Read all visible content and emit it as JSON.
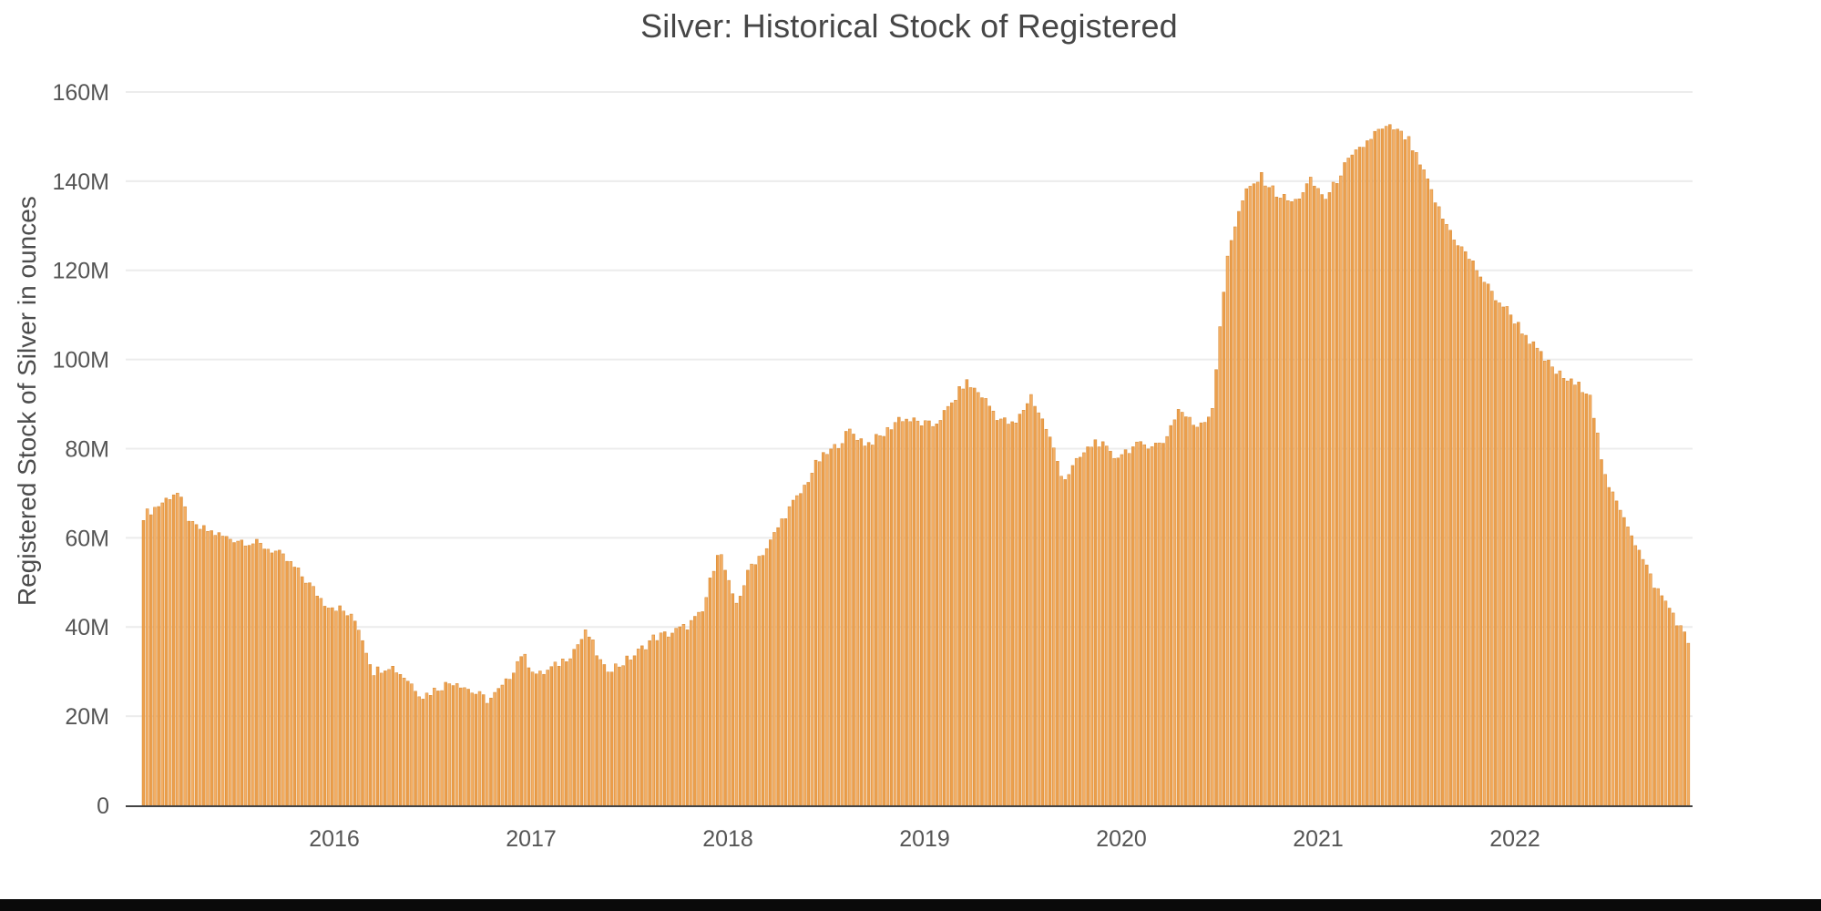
{
  "app": {
    "background": "#ffffff",
    "footer_bar_color": "#0a0a0a",
    "text_color": "#4c4c4c"
  },
  "chart_data": {
    "type": "bar",
    "title": "Silver: Historical Stock of Registered",
    "xlabel": "",
    "ylabel": "Registered Stock of Silver in ounces",
    "x_tick_labels": [
      "2016",
      "2017",
      "2018",
      "2019",
      "2020",
      "2021",
      "2022"
    ],
    "y_tick_labels": [
      "0",
      "20M",
      "40M",
      "60M",
      "80M",
      "100M",
      "120M",
      "140M",
      "160M"
    ],
    "y_tick_values_M": [
      0,
      20,
      40,
      60,
      80,
      100,
      120,
      140,
      160
    ],
    "ylim_M": [
      0,
      160
    ],
    "unit": "ounces (millions)",
    "grid": "horizontal",
    "legend": "none",
    "bar_color": "#ec9f4c",
    "bar_color_alt": "#f3ae64",
    "bar_edge_color": "#d68934",
    "gridline_color": "#ececec",
    "axis_line_color": "#444444",
    "x_range": [
      "2015-01",
      "2022-11"
    ],
    "sampling_note": "dense daily bars; series captured as monthly estimates in million oz",
    "series": [
      {
        "name": "Registered Stock of Silver",
        "monthly_values_M": [
          65,
          67.5,
          70.5,
          62.5,
          61.5,
          60,
          59.5,
          58.5,
          57,
          54,
          50,
          45.5,
          44,
          41,
          30,
          31.5,
          28.5,
          24.5,
          26.5,
          28,
          25.5,
          23.5,
          27,
          34,
          29,
          31,
          34,
          39,
          30.5,
          31.5,
          34,
          37.5,
          38.5,
          40,
          43,
          58,
          44.5,
          54,
          58,
          65,
          70,
          77,
          80,
          84,
          81,
          83,
          87,
          86,
          85,
          89,
          95,
          92,
          87,
          85,
          92,
          84,
          73,
          78,
          82,
          78,
          80,
          81,
          81,
          89,
          85,
          88,
          125,
          137,
          141,
          137,
          135,
          140,
          136,
          143,
          147,
          151,
          152,
          149,
          141,
          132,
          126,
          121,
          115,
          111,
          106,
          101,
          97,
          94.5,
          93,
          72,
          66,
          57,
          49,
          43.5,
          36.5
        ]
      }
    ]
  }
}
